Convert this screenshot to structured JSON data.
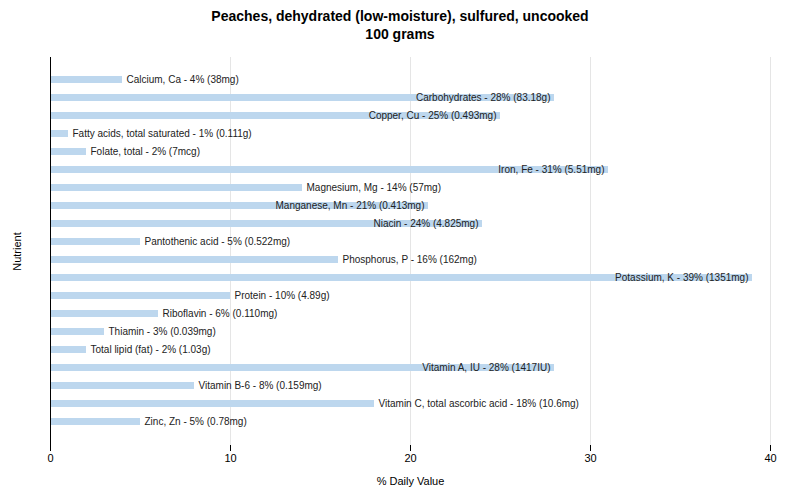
{
  "chart_data": {
    "type": "bar",
    "orientation": "horizontal",
    "title": "Peaches, dehydrated (low-moisture), sulfured, uncooked\n100 grams",
    "xlabel": "% Daily Value",
    "ylabel": "Nutrient",
    "categories": [
      null,
      null,
      null,
      null,
      null,
      null,
      null,
      null,
      null,
      null,
      null,
      null,
      null,
      null,
      null,
      null,
      null,
      null,
      null,
      null
    ],
    "values": [
      4,
      28,
      25,
      1,
      2,
      31,
      14,
      21,
      24,
      5,
      16,
      39,
      10,
      6,
      3,
      2,
      28,
      8,
      18,
      5
    ],
    "value_labels": [
      "Calcium, Ca - 4% (38mg)",
      "Carbohydrates - 28% (83.18g)",
      "Copper, Cu - 25% (0.493mg)",
      "Fatty acids, total saturated - 1% (0.111g)",
      "Folate, total - 2% (7mcg)",
      "Iron, Fe - 31% (5.51mg)",
      "Magnesium, Mg - 14% (57mg)",
      "Manganese, Mn - 21% (0.413mg)",
      "Niacin - 24% (4.825mg)",
      "Pantothenic acid - 5% (0.522mg)",
      "Phosphorus, P - 16% (162mg)",
      "Potassium, K - 39% (1351mg)",
      "Protein - 10% (4.89g)",
      "Riboflavin - 6% (0.110mg)",
      "Thiamin - 3% (0.039mg)",
      "Total lipid (fat) - 2% (1.03g)",
      "Vitamin A, IU - 28% (1417IU)",
      "Vitamin B-6 - 8% (0.159mg)",
      "Vitamin C, total ascorbic acid - 18% (10.6mg)",
      "Zinc, Zn - 5% (0.78mg)"
    ],
    "data_labels": true,
    "color": "#BDD7EE",
    "xlim": [
      0,
      40
    ],
    "xticks": [
      0,
      10,
      20,
      30,
      40
    ],
    "grid": true,
    "tick_labels": "x"
  }
}
